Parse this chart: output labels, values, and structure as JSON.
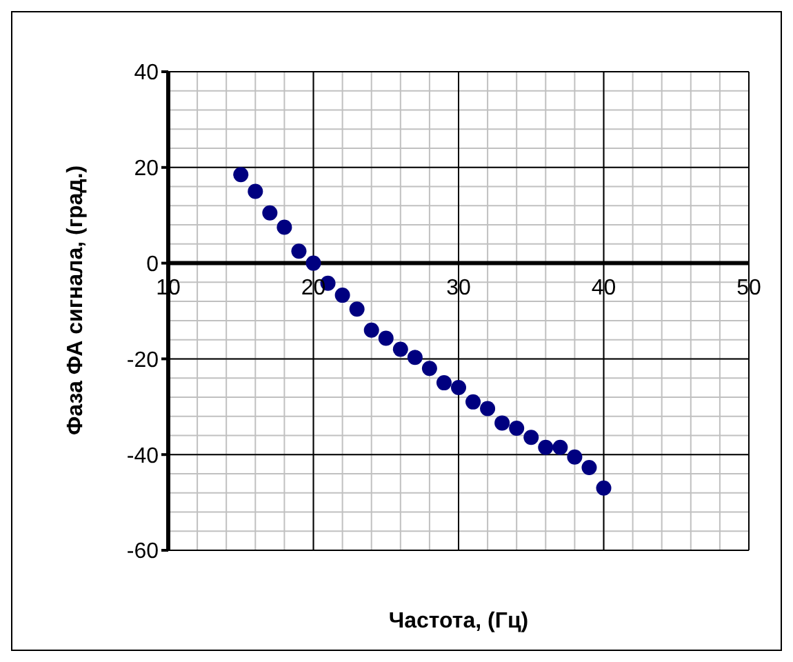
{
  "chart_data": {
    "type": "scatter",
    "xlabel": "Частота, (Гц)",
    "ylabel": "Фаза ФА сигнала, (град.)",
    "x": [
      15,
      16,
      17,
      18,
      19,
      20,
      21,
      22,
      23,
      24,
      25,
      26,
      27,
      28,
      29,
      30,
      31,
      32,
      33,
      34,
      35,
      36,
      37,
      38,
      39,
      40
    ],
    "series": [
      {
        "color": "#000080",
        "values": [
          18.5,
          15,
          10.5,
          7.5,
          2.5,
          0,
          -4.2,
          -6.7,
          -9.6,
          -14,
          -15.7,
          -18,
          -19.7,
          -22,
          -25,
          -26,
          -29,
          -30.4,
          -33.4,
          -34.5,
          -36.4,
          -38.5,
          -38.5,
          -40.5,
          -42.7,
          -47
        ]
      }
    ],
    "xlim": [
      10,
      50
    ],
    "xticks": [
      10,
      20,
      30,
      40,
      50
    ],
    "ylim": [
      -60,
      40
    ],
    "yticks": [
      -60,
      -40,
      -20,
      0,
      20,
      40
    ],
    "grid": true,
    "legend": false,
    "marker": "circle"
  }
}
